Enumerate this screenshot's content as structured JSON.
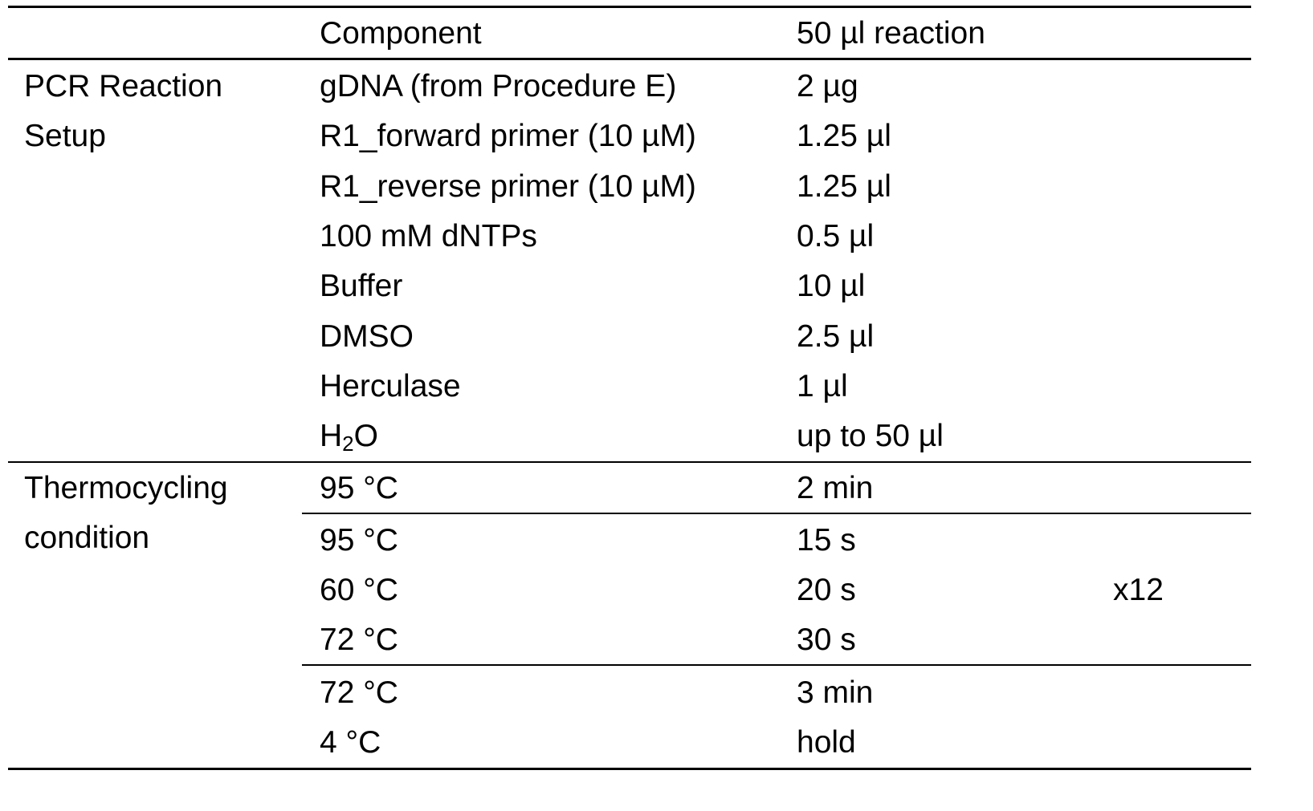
{
  "header": {
    "group": "",
    "component": "Component",
    "amount": "50 µl reaction"
  },
  "pcr_setup": {
    "label_line1": "PCR Reaction",
    "label_line2": "Setup",
    "rows": [
      {
        "component": "gDNA (from Procedure E)",
        "amount": "2 µg"
      },
      {
        "component": "R1_forward primer (10 µM)",
        "amount": "1.25 µl"
      },
      {
        "component": "R1_reverse primer (10 µM)",
        "amount": "1.25 µl"
      },
      {
        "component": "100 mM dNTPs",
        "amount": "0.5 µl"
      },
      {
        "component": "Buffer",
        "amount": "10 µl"
      },
      {
        "component": "DMSO",
        "amount": "2.5 µl"
      },
      {
        "component": "Herculase",
        "amount": "1 µl"
      }
    ],
    "water": {
      "prefix": "H",
      "subscript": "2",
      "suffix": "O",
      "amount": "up to 50 µl"
    }
  },
  "thermocycling": {
    "label_line1": "Thermocycling",
    "label_line2": "condition",
    "initial": {
      "temp": "95 °C",
      "time": "2 min"
    },
    "cycle": [
      {
        "temp": "95 °C",
        "time": "15 s"
      },
      {
        "temp": "60 °C",
        "time": "20 s"
      },
      {
        "temp": "72 °C",
        "time": "30 s"
      }
    ],
    "cycle_count": "x12",
    "final": [
      {
        "temp": "72 °C",
        "time": "3 min"
      },
      {
        "temp": "4 °C",
        "time": "hold"
      }
    ]
  }
}
